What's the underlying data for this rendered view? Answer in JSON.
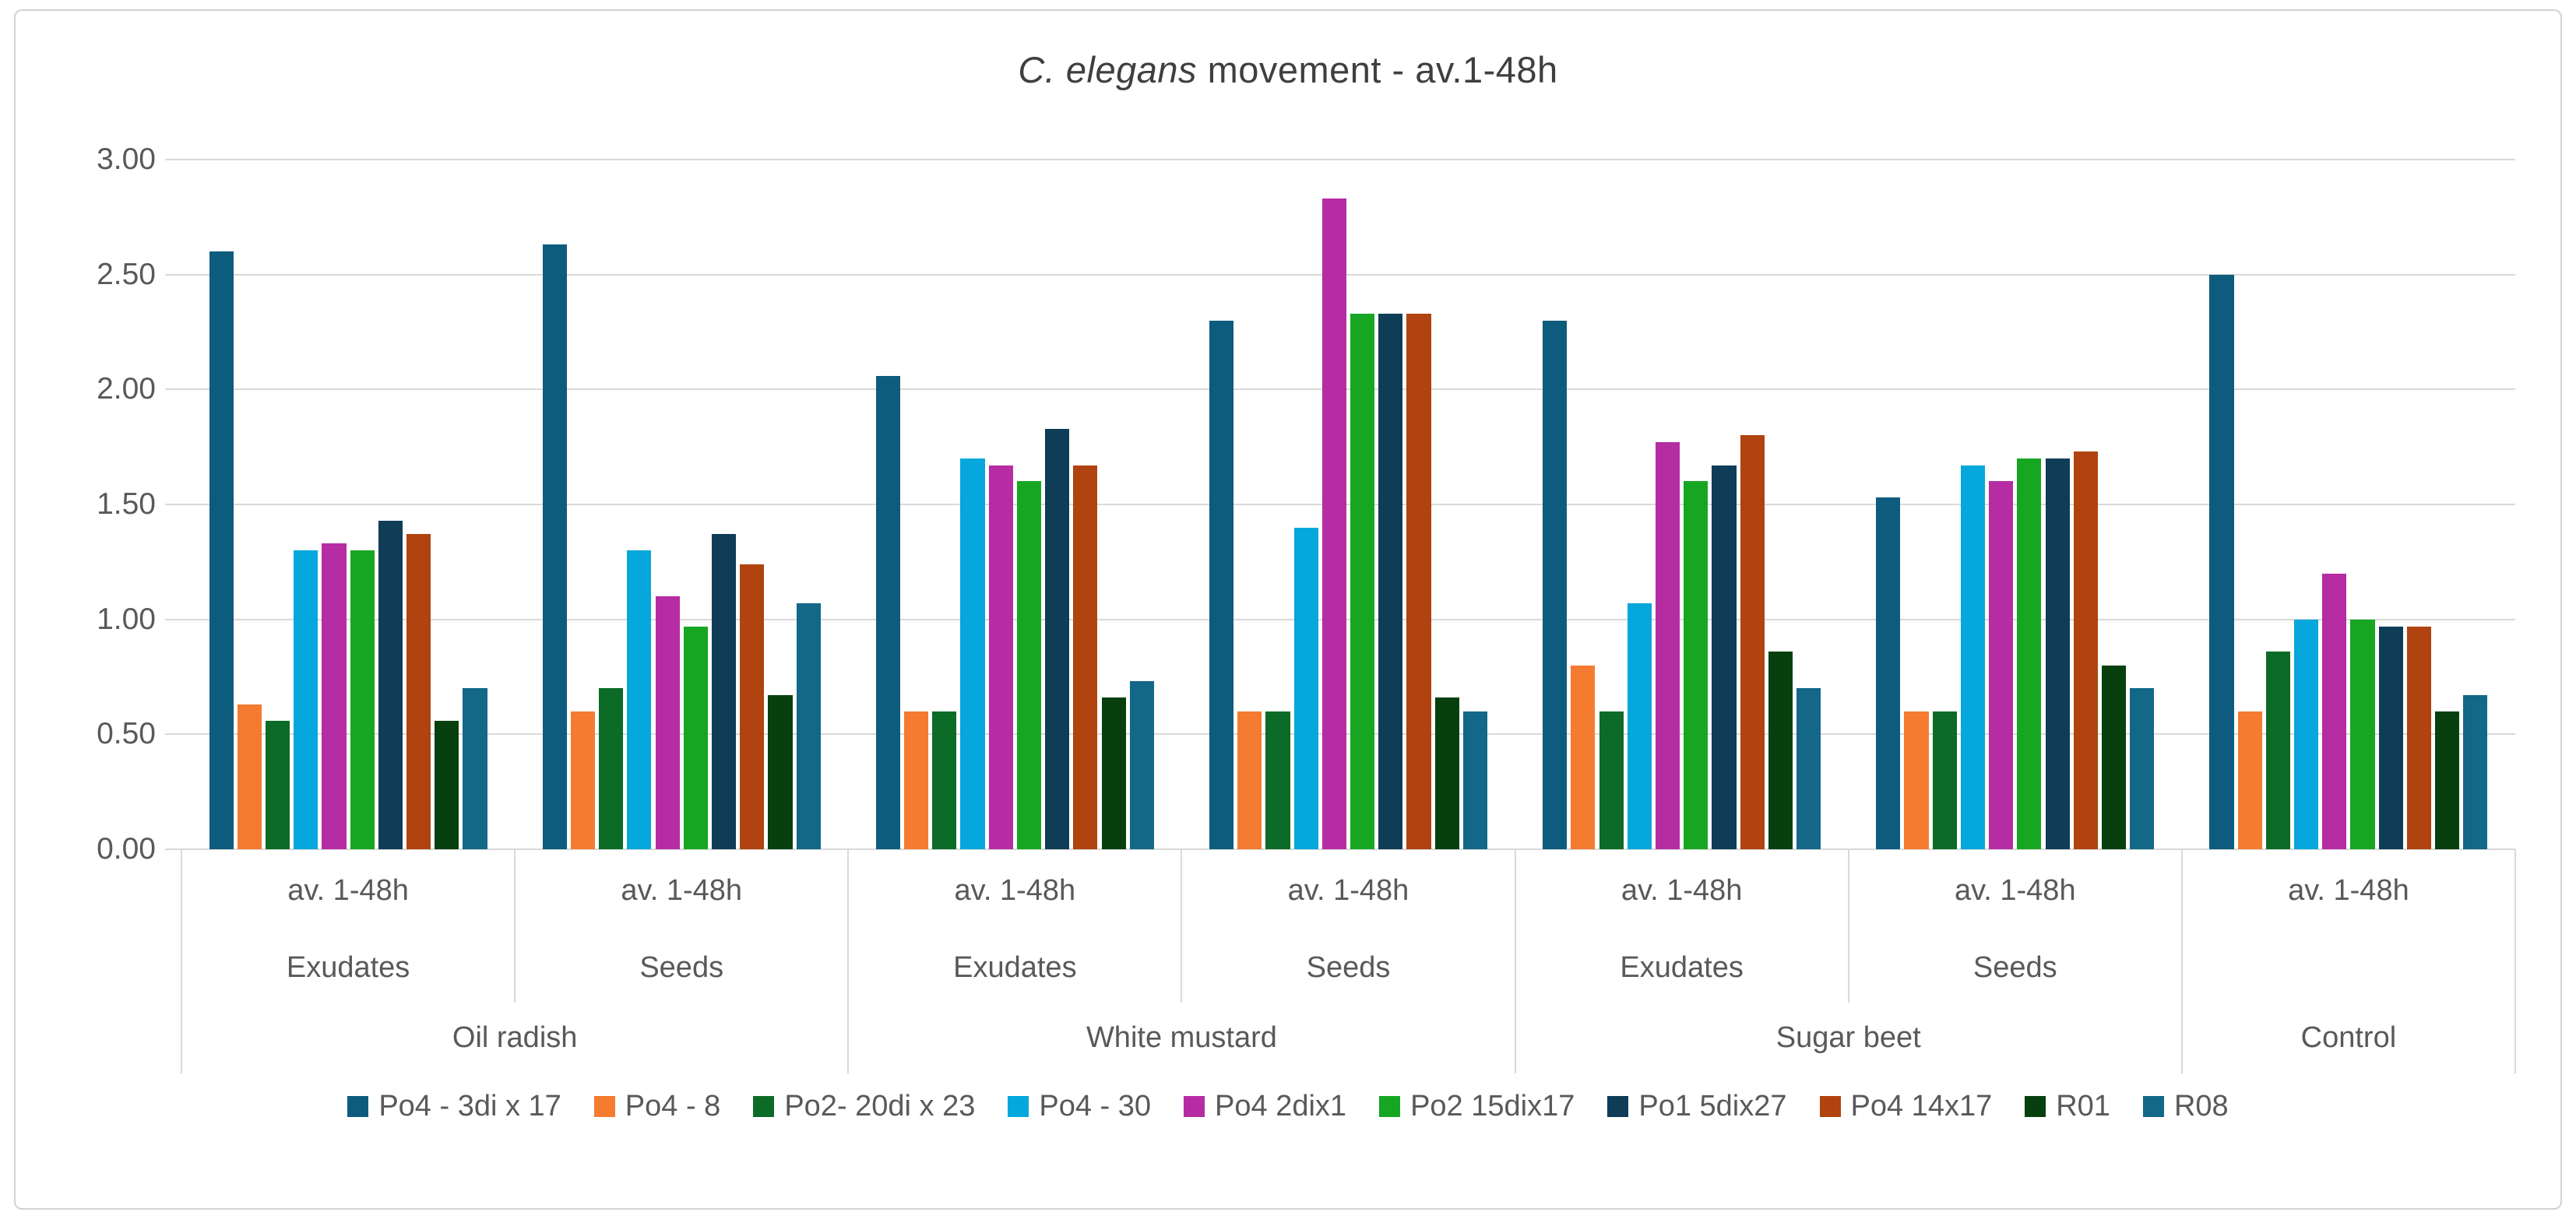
{
  "title": {
    "prefix_italic": "C. elegans",
    "suffix": " movement - av.1-48h"
  },
  "chart_data": {
    "type": "bar",
    "title": "C. elegans movement - av.1-48h",
    "xlabel": "",
    "ylabel": "",
    "ylim": [
      0,
      3.0
    ],
    "ytick_step": 0.5,
    "ytick_labels": [
      "0.00",
      "0.50",
      "1.00",
      "1.50",
      "2.00",
      "2.50",
      "3.00"
    ],
    "grid": true,
    "legend_position": "bottom",
    "groups": [
      {
        "tick": "av. 1-48h",
        "treatment": "Exudates",
        "crop": "Oil radish"
      },
      {
        "tick": "av. 1-48h",
        "treatment": "Seeds",
        "crop": "Oil radish"
      },
      {
        "tick": "av. 1-48h",
        "treatment": "Exudates",
        "crop": "White mustard"
      },
      {
        "tick": "av. 1-48h",
        "treatment": "Seeds",
        "crop": "White mustard"
      },
      {
        "tick": "av. 1-48h",
        "treatment": "Exudates",
        "crop": "Sugar beet"
      },
      {
        "tick": "av. 1-48h",
        "treatment": "Seeds",
        "crop": "Sugar beet"
      },
      {
        "tick": "av. 1-48h",
        "treatment": "",
        "crop": "Control"
      }
    ],
    "crop_spans": [
      {
        "label": "Oil radish",
        "span": 2
      },
      {
        "label": "White mustard",
        "span": 2
      },
      {
        "label": "Sugar beet",
        "span": 2
      },
      {
        "label": "Control",
        "span": 1
      }
    ],
    "series": [
      {
        "name": "Po4 - 3di x 17",
        "color": "#0e5c7d",
        "values": [
          2.6,
          2.63,
          2.06,
          2.3,
          2.3,
          1.53,
          2.5
        ]
      },
      {
        "name": "Po4 - 8",
        "color": "#f57b31",
        "values": [
          0.63,
          0.6,
          0.6,
          0.6,
          0.8,
          0.6,
          0.6
        ]
      },
      {
        "name": "Po2- 20di x 23",
        "color": "#0b6b27",
        "values": [
          0.56,
          0.7,
          0.6,
          0.6,
          0.6,
          0.6,
          0.86
        ]
      },
      {
        "name": "Po4 - 30",
        "color": "#06a7dc",
        "values": [
          1.3,
          1.3,
          1.7,
          1.4,
          1.07,
          1.67,
          1.0
        ]
      },
      {
        "name": "Po4 2dix1",
        "color": "#b52ca3",
        "values": [
          1.33,
          1.1,
          1.67,
          2.83,
          1.77,
          1.6,
          1.2
        ]
      },
      {
        "name": "Po2 15dix17",
        "color": "#17a622",
        "values": [
          1.3,
          0.97,
          1.6,
          2.33,
          1.6,
          1.7,
          1.0
        ]
      },
      {
        "name": "Po1 5dix27",
        "color": "#0f3c56",
        "values": [
          1.43,
          1.37,
          1.83,
          2.33,
          1.67,
          1.7,
          0.97
        ]
      },
      {
        "name": "Po4 14x17",
        "color": "#b0430f",
        "values": [
          1.37,
          1.24,
          1.67,
          2.33,
          1.8,
          1.73,
          0.97
        ]
      },
      {
        "name": "R01",
        "color": "#07400e",
        "values": [
          0.56,
          0.67,
          0.66,
          0.66,
          0.86,
          0.8,
          0.6
        ]
      },
      {
        "name": "R08",
        "color": "#136787",
        "values": [
          0.7,
          1.07,
          0.73,
          0.6,
          0.7,
          0.7,
          0.67
        ]
      }
    ],
    "colors": {
      "gridline": "#d9d9d9",
      "axis_text": "#595959",
      "title_text": "#3f3f3f",
      "frame_border": "#d2d2d2"
    }
  }
}
